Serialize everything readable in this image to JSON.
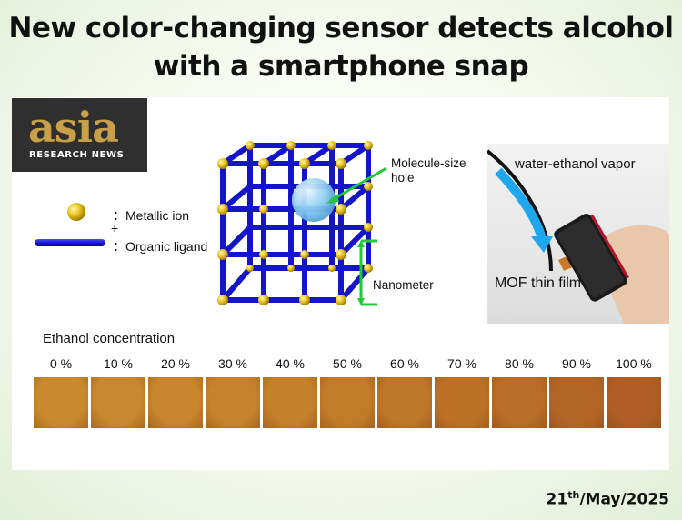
{
  "title": {
    "line1": "New color-changing sensor detects alcohol",
    "line2": "with a smartphone snap"
  },
  "logo": {
    "word": "asia",
    "subtitle": "RESEARCH NEWS"
  },
  "legend": {
    "metal": "：Metallic ion",
    "plus": "+",
    "ligand": "：Organic ligand"
  },
  "diagram": {
    "hole_label_1": "Molecule-size",
    "hole_label_2": "hole",
    "scale_label": "Nanometer"
  },
  "photo": {
    "vapor_label": "water-ethanol vapor",
    "film_label": "MOF thin film"
  },
  "concentration": {
    "title": "Ethanol concentration",
    "levels": [
      "0 %",
      "10 %",
      "20 %",
      "30 %",
      "40 %",
      "50 %",
      "60 %",
      "70 %",
      "80 %",
      "90 %",
      "100 %"
    ],
    "colors": [
      "#c98a2e",
      "#c8882d",
      "#c7852c",
      "#c6832b",
      "#c5802a",
      "#c27b29",
      "#bf7628",
      "#bc7127",
      "#b86c27",
      "#b36526",
      "#ae5e25"
    ]
  },
  "date": {
    "day": "21",
    "suffix": "th",
    "rest": "/May/2025"
  },
  "colors": {
    "framework_blue": "#1414c8",
    "node_yellow": "#e6c21a",
    "arrow_green": "#22c83a",
    "arrow_blue": "#1ea7ee"
  }
}
